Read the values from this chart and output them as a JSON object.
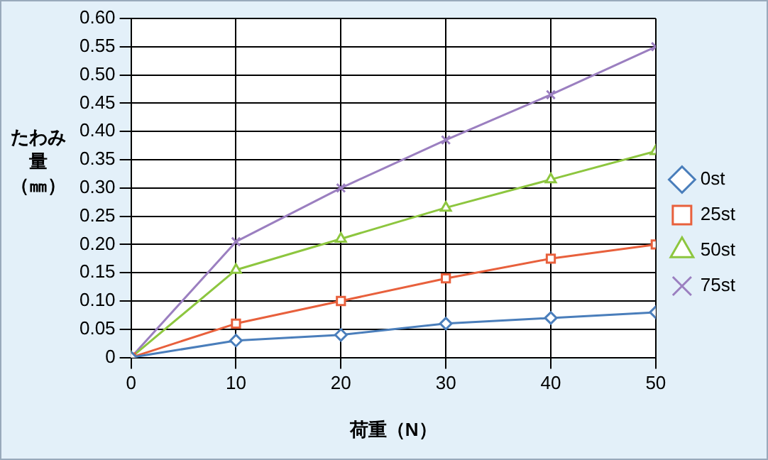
{
  "chart_data": {
    "type": "line",
    "xlabel": "荷重（N）",
    "ylabel": "たわみ量（㎜）",
    "x": [
      0,
      10,
      20,
      30,
      40,
      50
    ],
    "series": [
      {
        "name": "0st",
        "color": "#4a7ebb",
        "marker": "diamond",
        "values": [
          0,
          0.03,
          0.04,
          0.06,
          0.07,
          0.08
        ]
      },
      {
        "name": "25st",
        "color": "#e8603c",
        "marker": "square",
        "values": [
          0,
          0.06,
          0.1,
          0.14,
          0.175,
          0.2
        ]
      },
      {
        "name": "50st",
        "color": "#8dc63f",
        "marker": "triangle",
        "values": [
          0,
          0.155,
          0.21,
          0.265,
          0.315,
          0.365
        ]
      },
      {
        "name": "75st",
        "color": "#9b7fc0",
        "marker": "cross",
        "values": [
          0,
          0.205,
          0.3,
          0.385,
          0.465,
          0.55
        ]
      }
    ],
    "xlim": [
      0,
      50
    ],
    "xticks": [
      0,
      10,
      20,
      30,
      40,
      50
    ],
    "ylim": [
      0,
      0.6
    ],
    "yticks": [
      0,
      0.05,
      {
        "value": 0.1,
        "label": "0.10"
      },
      0.15,
      {
        "value": 0.2,
        "label": "0.20"
      },
      0.25,
      {
        "value": 0.3,
        "label": "0.30"
      },
      0.35,
      {
        "value": 0.4,
        "label": "0.40"
      },
      0.45,
      {
        "value": 0.5,
        "label": "0.50"
      },
      0.55,
      {
        "value": 0.6,
        "label": "0.60"
      }
    ],
    "grid": true,
    "legend": "right",
    "line_style": "solid"
  }
}
